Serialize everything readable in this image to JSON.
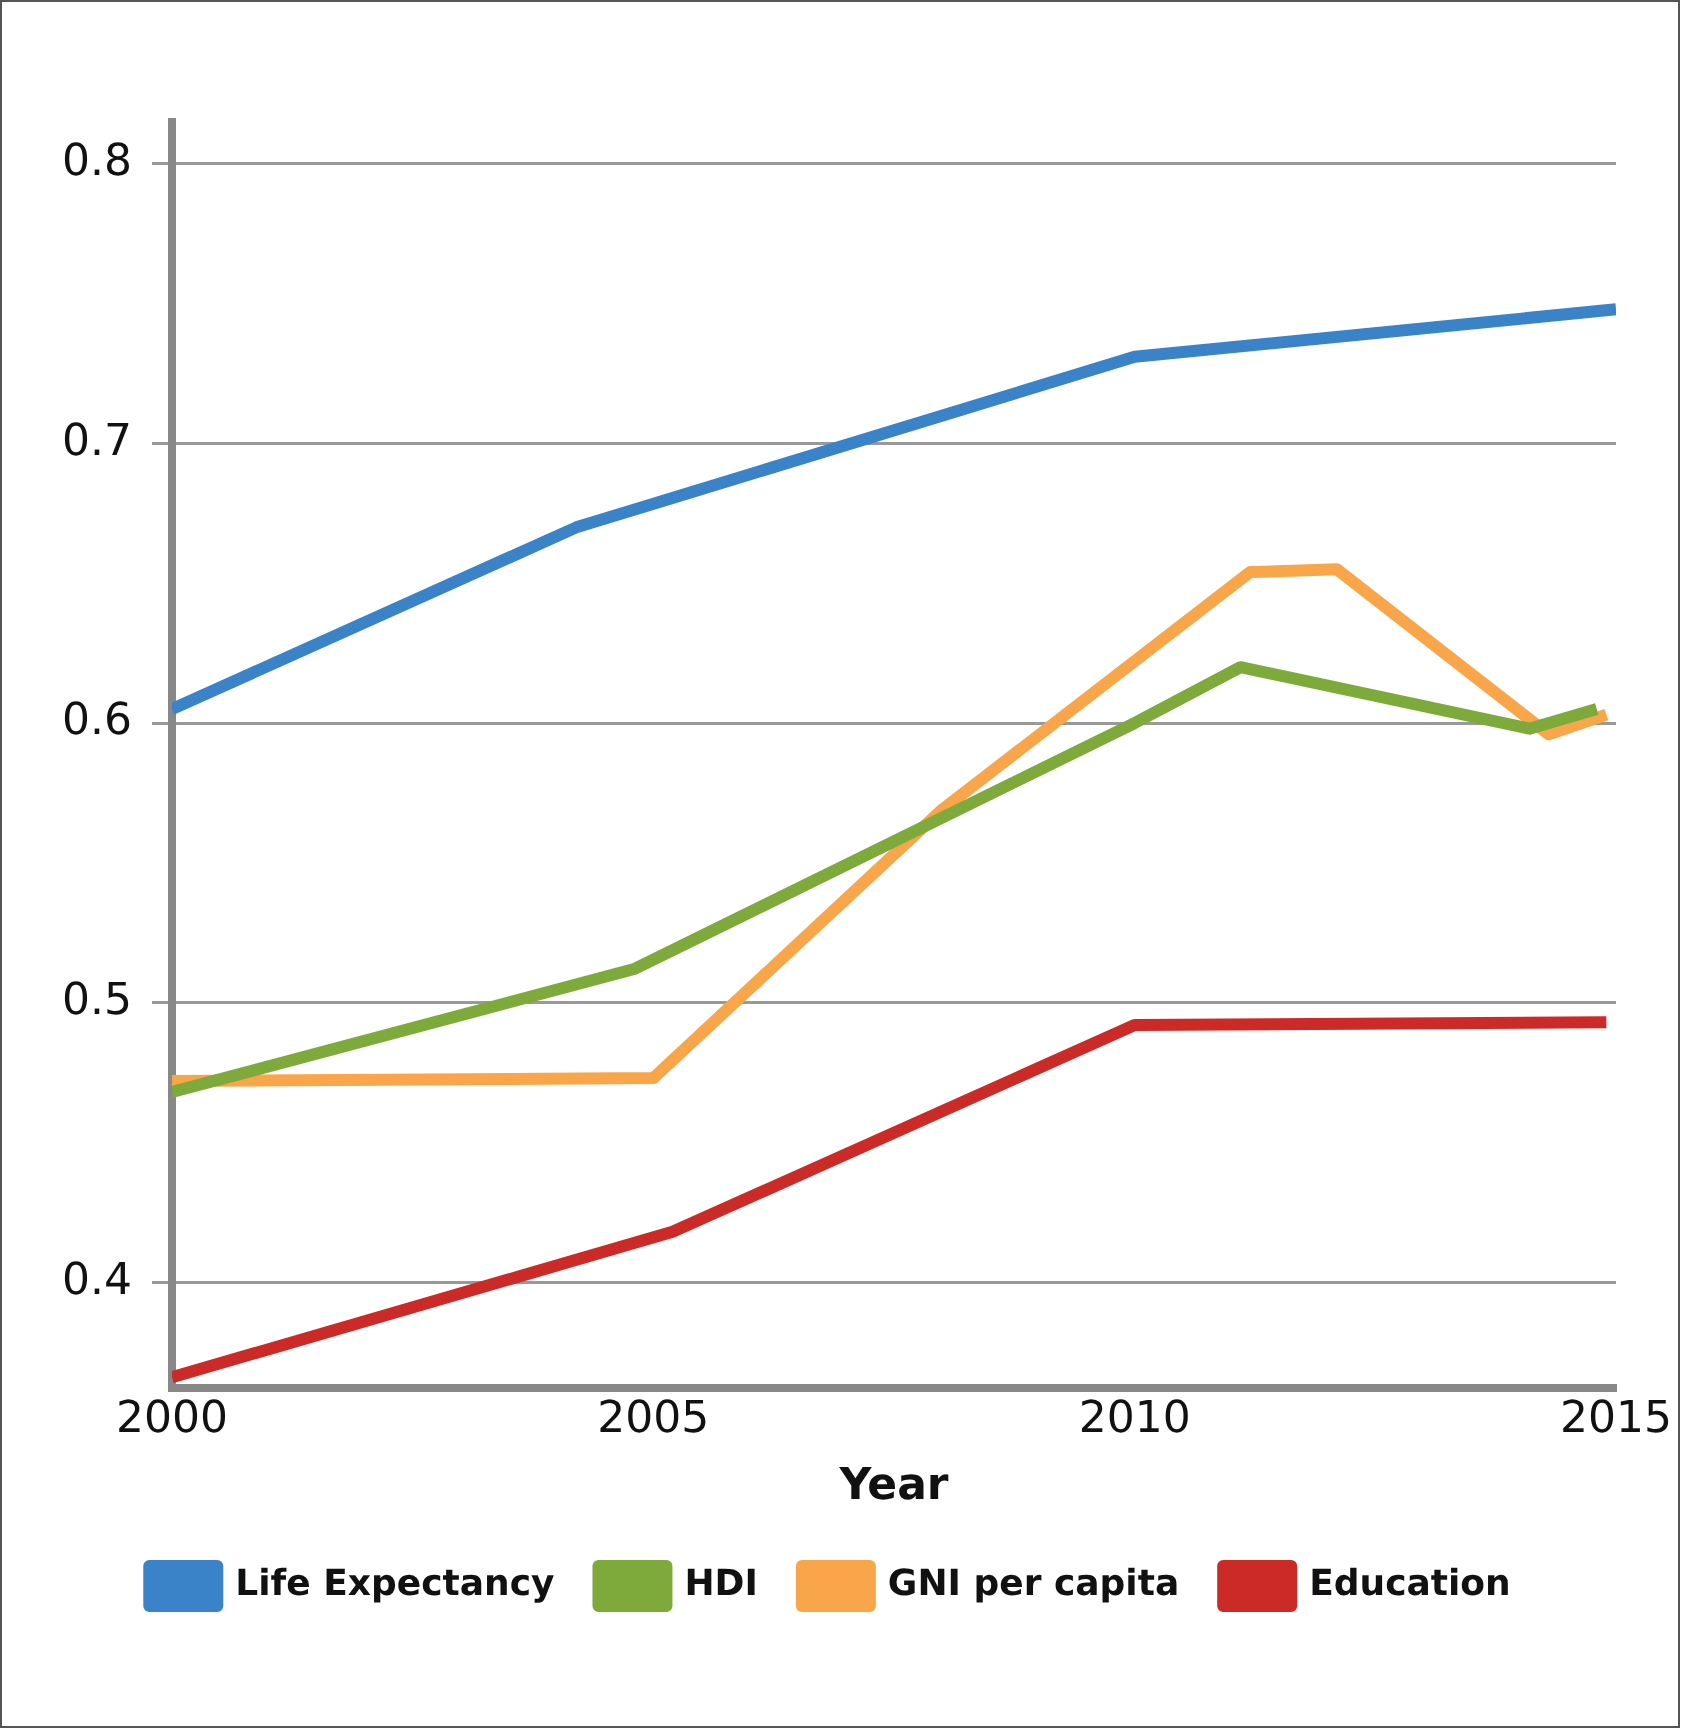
{
  "chart_data": {
    "type": "line",
    "xlabel": "Year",
    "xlim": [
      2000,
      2015
    ],
    "xticks": [
      2000,
      2005,
      2010,
      2015
    ],
    "ylim": [
      0.362,
      0.815
    ],
    "yticks": [
      0.4,
      0.5,
      0.6,
      0.7,
      0.8
    ],
    "grid": "y",
    "legend": "bottom",
    "marker": "none",
    "series": [
      {
        "name": "Life Expectancy",
        "color": "#3a83c8",
        "x": [
          2000,
          2004.2,
          2010,
          2015
        ],
        "values": [
          0.605,
          0.67,
          0.731,
          0.748
        ]
      },
      {
        "name": "HDI",
        "color": "#7daa3b",
        "x": [
          2000,
          2004.8,
          2010,
          2011.1,
          2014.1,
          2014.8
        ],
        "values": [
          0.468,
          0.512,
          0.6,
          0.62,
          0.598,
          0.605
        ]
      },
      {
        "name": "GNI per capita",
        "color": "#f9a64a",
        "x": [
          2000,
          2005,
          2008,
          2011.2,
          2012.1,
          2014.3,
          2014.9
        ],
        "values": [
          0.472,
          0.473,
          0.569,
          0.654,
          0.655,
          0.596,
          0.603
        ]
      },
      {
        "name": "Education",
        "color": "#cc2a27",
        "x": [
          2000,
          2005.2,
          2010,
          2014.9
        ],
        "values": [
          0.366,
          0.418,
          0.492,
          0.493
        ]
      }
    ]
  }
}
